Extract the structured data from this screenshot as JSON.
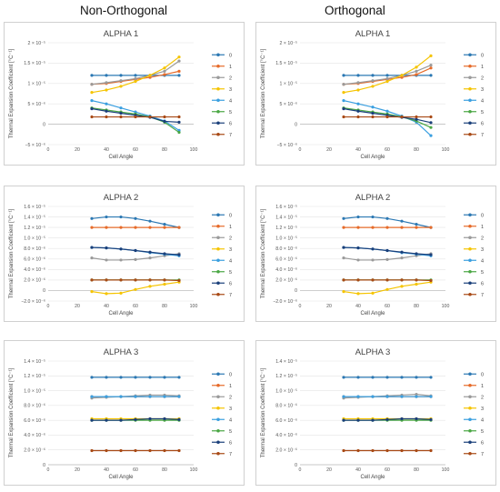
{
  "columns": {
    "left": "Non-Orthogonal",
    "right": "Orthogonal"
  },
  "series_colors": [
    "#2b78b3",
    "#e66b2a",
    "#9a9a9a",
    "#f5c400",
    "#3a9fe0",
    "#4aa744",
    "#1a3f7a",
    "#a84a16"
  ],
  "chart_data": [
    {
      "type": "line",
      "panel": "alpha1-non-orthogonal",
      "title": "ALPHA 1",
      "xlabel": "Cell Angle",
      "ylabel": "Thermal Expansion Coefficient [°C⁻¹]",
      "xlim": [
        0,
        100
      ],
      "ylim": [
        -5e-06,
        2e-05
      ],
      "x_ticks": [
        "0",
        "20",
        "40",
        "60",
        "80",
        "100"
      ],
      "y_ticks": [
        "−5 × 10⁻⁶",
        "0",
        "5 × 10⁻⁶",
        "1 × 10⁻⁵",
        "1.5 × 10⁻⁵",
        "2 × 10⁻⁵"
      ],
      "x": [
        30,
        40,
        50,
        60,
        70,
        80,
        90
      ],
      "series": [
        {
          "name": "0",
          "values": [
            1.2e-05,
            1.2e-05,
            1.2e-05,
            1.2e-05,
            1.2e-05,
            1.2e-05,
            1.2e-05
          ]
        },
        {
          "name": "1",
          "values": [
            9.8e-06,
            1e-05,
            1.05e-05,
            1.1e-05,
            1.15e-05,
            1.22e-05,
            1.3e-05
          ]
        },
        {
          "name": "2",
          "values": [
            9.8e-06,
            1.02e-05,
            1.07e-05,
            1.12e-05,
            1.2e-05,
            1.3e-05,
            1.55e-05
          ]
        },
        {
          "name": "3",
          "values": [
            7.8e-06,
            8.4e-06,
            9.3e-06,
            1.05e-05,
            1.2e-05,
            1.38e-05,
            1.65e-05
          ]
        },
        {
          "name": "4",
          "values": [
            5.8e-06,
            5e-06,
            4e-06,
            3e-06,
            2e-06,
            8e-07,
            -1.5e-06
          ]
        },
        {
          "name": "5",
          "values": [
            4e-06,
            3.5e-06,
            3e-06,
            2.5e-06,
            1.8e-06,
            5e-07,
            -2e-06
          ]
        },
        {
          "name": "6",
          "values": [
            3.8e-06,
            3.2e-06,
            2.7e-06,
            2.2e-06,
            1.7e-06,
            7e-07,
            5e-07
          ]
        },
        {
          "name": "7",
          "values": [
            1.8e-06,
            1.8e-06,
            1.8e-06,
            1.8e-06,
            1.8e-06,
            1.8e-06,
            1.8e-06
          ]
        }
      ]
    },
    {
      "type": "line",
      "panel": "alpha1-orthogonal",
      "title": "ALPHA 1",
      "xlabel": "Cell Angle",
      "ylabel": "Thermal Expansion Coefficient [°C⁻¹]",
      "xlim": [
        0,
        100
      ],
      "ylim": [
        -5e-06,
        2e-05
      ],
      "x_ticks": [
        "0",
        "20",
        "40",
        "60",
        "80",
        "100"
      ],
      "y_ticks": [
        "−5 × 10⁻⁶",
        "0",
        "5 × 10⁻⁶",
        "1 × 10⁻⁵",
        "1.5 × 10⁻⁵",
        "2 × 10⁻⁵"
      ],
      "x": [
        30,
        40,
        50,
        60,
        70,
        80,
        90
      ],
      "series": [
        {
          "name": "0",
          "values": [
            1.2e-05,
            1.2e-05,
            1.2e-05,
            1.2e-05,
            1.2e-05,
            1.2e-05,
            1.2e-05
          ]
        },
        {
          "name": "1",
          "values": [
            9.8e-06,
            1e-05,
            1.05e-05,
            1.1e-05,
            1.15e-05,
            1.22e-05,
            1.38e-05
          ]
        },
        {
          "name": "2",
          "values": [
            9.8e-06,
            1.02e-05,
            1.07e-05,
            1.12e-05,
            1.2e-05,
            1.3e-05,
            1.45e-05
          ]
        },
        {
          "name": "3",
          "values": [
            7.8e-06,
            8.4e-06,
            9.3e-06,
            1.05e-05,
            1.2e-05,
            1.4e-05,
            1.68e-05
          ]
        },
        {
          "name": "4",
          "values": [
            5.8e-06,
            5e-06,
            4.2e-06,
            3.2e-06,
            2e-06,
            5e-07,
            -2.8e-06
          ]
        },
        {
          "name": "5",
          "values": [
            4e-06,
            3.5e-06,
            3e-06,
            2.5e-06,
            1.8e-06,
            8e-07,
            -8e-07
          ]
        },
        {
          "name": "6",
          "values": [
            3.8e-06,
            3.2e-06,
            2.7e-06,
            2.2e-06,
            1.7e-06,
            1.2e-06,
            4e-07
          ]
        },
        {
          "name": "7",
          "values": [
            1.8e-06,
            1.8e-06,
            1.8e-06,
            1.8e-06,
            1.8e-06,
            1.8e-06,
            1.8e-06
          ]
        }
      ]
    },
    {
      "type": "line",
      "panel": "alpha2-non-orthogonal",
      "title": "ALPHA 2",
      "xlabel": "Cell Angle",
      "ylabel": "Thermal Expansion Coefficient [°C⁻¹]",
      "xlim": [
        0,
        100
      ],
      "ylim": [
        -2e-06,
        1.6e-05
      ],
      "x_ticks": [
        "0",
        "20",
        "40",
        "60",
        "80",
        "100"
      ],
      "y_ticks": [
        "−2.0 × 10⁻⁶",
        "0",
        "2.0 × 10⁻⁶",
        "4.0 × 10⁻⁶",
        "6.0 × 10⁻⁶",
        "8.0 × 10⁻⁶",
        "1.0 × 10⁻⁵",
        "1.2 × 10⁻⁵",
        "1.4 × 10⁻⁵",
        "1.6 × 10⁻⁵"
      ],
      "x": [
        30,
        40,
        50,
        60,
        70,
        80,
        90
      ],
      "series": [
        {
          "name": "0",
          "values": [
            1.37e-05,
            1.4e-05,
            1.4e-05,
            1.37e-05,
            1.32e-05,
            1.26e-05,
            1.2e-05
          ]
        },
        {
          "name": "1",
          "values": [
            1.2e-05,
            1.2e-05,
            1.2e-05,
            1.2e-05,
            1.2e-05,
            1.2e-05,
            1.2e-05
          ]
        },
        {
          "name": "2",
          "values": [
            6.2e-06,
            5.8e-06,
            5.8e-06,
            5.9e-06,
            6.2e-06,
            6.6e-06,
            7e-06
          ]
        },
        {
          "name": "3",
          "values": [
            -2e-07,
            -6e-07,
            -5e-07,
            2e-07,
            8e-07,
            1.2e-06,
            1.6e-06
          ]
        },
        {
          "name": "4",
          "values": [
            8.2e-06,
            8.1e-06,
            7.9e-06,
            7.6e-06,
            7.2e-06,
            6.9e-06,
            6.6e-06
          ]
        },
        {
          "name": "5",
          "values": [
            2e-06,
            2e-06,
            2e-06,
            2e-06,
            2e-06,
            2e-06,
            2e-06
          ]
        },
        {
          "name": "6",
          "values": [
            8.2e-06,
            8.1e-06,
            7.9e-06,
            7.6e-06,
            7.3e-06,
            7e-06,
            6.8e-06
          ]
        },
        {
          "name": "7",
          "values": [
            2e-06,
            2e-06,
            2e-06,
            2e-06,
            2e-06,
            2e-06,
            1.9e-06
          ]
        }
      ]
    },
    {
      "type": "line",
      "panel": "alpha2-orthogonal",
      "title": "ALPHA 2",
      "xlabel": "Cell Angle",
      "ylabel": "Thermal Expansion Coefficient [°C⁻¹]",
      "xlim": [
        0,
        100
      ],
      "ylim": [
        -2e-06,
        1.6e-05
      ],
      "x_ticks": [
        "0",
        "20",
        "40",
        "60",
        "80",
        "100"
      ],
      "y_ticks": [
        "−2.0 × 10⁻⁶",
        "0",
        "2.0 × 10⁻⁶",
        "4.0 × 10⁻⁶",
        "6.0 × 10⁻⁶",
        "8.0 × 10⁻⁶",
        "1.0 × 10⁻⁵",
        "1.2 × 10⁻⁵",
        "1.4 × 10⁻⁵",
        "1.6 × 10⁻⁵"
      ],
      "x": [
        30,
        40,
        50,
        60,
        70,
        80,
        90
      ],
      "series": [
        {
          "name": "0",
          "values": [
            1.37e-05,
            1.4e-05,
            1.4e-05,
            1.37e-05,
            1.32e-05,
            1.26e-05,
            1.2e-05
          ]
        },
        {
          "name": "1",
          "values": [
            1.2e-05,
            1.2e-05,
            1.2e-05,
            1.2e-05,
            1.2e-05,
            1.2e-05,
            1.2e-05
          ]
        },
        {
          "name": "2",
          "values": [
            6.2e-06,
            5.8e-06,
            5.8e-06,
            5.9e-06,
            6.2e-06,
            6.6e-06,
            7e-06
          ]
        },
        {
          "name": "3",
          "values": [
            -2e-07,
            -6e-07,
            -5e-07,
            2e-07,
            8e-07,
            1.2e-06,
            1.6e-06
          ]
        },
        {
          "name": "4",
          "values": [
            8.2e-06,
            8.1e-06,
            7.9e-06,
            7.6e-06,
            7.2e-06,
            6.9e-06,
            6.6e-06
          ]
        },
        {
          "name": "5",
          "values": [
            2e-06,
            2e-06,
            2e-06,
            2e-06,
            2e-06,
            2e-06,
            2e-06
          ]
        },
        {
          "name": "6",
          "values": [
            8.2e-06,
            8.1e-06,
            7.9e-06,
            7.6e-06,
            7.3e-06,
            7e-06,
            6.8e-06
          ]
        },
        {
          "name": "7",
          "values": [
            2e-06,
            2e-06,
            2e-06,
            2e-06,
            2e-06,
            2e-06,
            1.9e-06
          ]
        }
      ]
    },
    {
      "type": "line",
      "panel": "alpha3-non-orthogonal",
      "title": "ALPHA 3",
      "xlabel": "Cell Angle",
      "ylabel": "Thermal Expansion Coefficient [°C⁻¹]",
      "xlim": [
        0,
        100
      ],
      "ylim": [
        0,
        1.4e-05
      ],
      "x_ticks": [
        "0",
        "20",
        "40",
        "60",
        "80",
        "100"
      ],
      "y_ticks": [
        "0",
        "2.0 × 10⁻⁶",
        "4.0 × 10⁻⁶",
        "6.0 × 10⁻⁶",
        "8.0 × 10⁻⁶",
        "1.0 × 10⁻⁵",
        "1.2 × 10⁻⁵",
        "1.4 × 10⁻⁵"
      ],
      "x": [
        30,
        40,
        50,
        60,
        70,
        80,
        90
      ],
      "series": [
        {
          "name": "0",
          "values": [
            1.18e-05,
            1.18e-05,
            1.18e-05,
            1.18e-05,
            1.18e-05,
            1.18e-05,
            1.18e-05
          ]
        },
        {
          "name": "1",
          "values": [
            9.2e-06,
            9.2e-06,
            9.2e-06,
            9.2e-06,
            9.2e-06,
            9.2e-06,
            9.2e-06
          ]
        },
        {
          "name": "2",
          "values": [
            9e-06,
            9.1e-06,
            9.2e-06,
            9.3e-06,
            9.4e-06,
            9.4e-06,
            9.3e-06
          ]
        },
        {
          "name": "3",
          "values": [
            6.2e-06,
            6.2e-06,
            6.2e-06,
            6.2e-06,
            6.2e-06,
            6.2e-06,
            6.2e-06
          ]
        },
        {
          "name": "4",
          "values": [
            9.2e-06,
            9.2e-06,
            9.2e-06,
            9.2e-06,
            9.2e-06,
            9.2e-06,
            9.2e-06
          ]
        },
        {
          "name": "5",
          "values": [
            6e-06,
            6e-06,
            6e-06,
            6e-06,
            6e-06,
            6e-06,
            6e-06
          ]
        },
        {
          "name": "6",
          "values": [
            6e-06,
            6e-06,
            6e-06,
            6.1e-06,
            6.2e-06,
            6.2e-06,
            6.1e-06
          ]
        },
        {
          "name": "7",
          "values": [
            1.9e-06,
            1.9e-06,
            1.9e-06,
            1.9e-06,
            1.9e-06,
            1.9e-06,
            1.9e-06
          ]
        }
      ]
    },
    {
      "type": "line",
      "panel": "alpha3-orthogonal",
      "title": "ALPHA 3",
      "xlabel": "Cell Angle",
      "ylabel": "Thermal Expansion Coefficient [°C⁻¹]",
      "xlim": [
        0,
        100
      ],
      "ylim": [
        0,
        1.4e-05
      ],
      "x_ticks": [
        "0",
        "20",
        "40",
        "60",
        "80",
        "100"
      ],
      "y_ticks": [
        "0",
        "2.0 × 10⁻⁶",
        "4.0 × 10⁻⁶",
        "6.0 × 10⁻⁶",
        "8.0 × 10⁻⁶",
        "1.0 × 10⁻⁵",
        "1.2 × 10⁻⁵",
        "1.4 × 10⁻⁵"
      ],
      "x": [
        30,
        40,
        50,
        60,
        70,
        80,
        90
      ],
      "series": [
        {
          "name": "0",
          "values": [
            1.18e-05,
            1.18e-05,
            1.18e-05,
            1.18e-05,
            1.18e-05,
            1.18e-05,
            1.18e-05
          ]
        },
        {
          "name": "1",
          "values": [
            9.2e-06,
            9.2e-06,
            9.2e-06,
            9.2e-06,
            9.2e-06,
            9.2e-06,
            9.2e-06
          ]
        },
        {
          "name": "2",
          "values": [
            9e-06,
            9.1e-06,
            9.2e-06,
            9.3e-06,
            9.4e-06,
            9.5e-06,
            9.3e-06
          ]
        },
        {
          "name": "3",
          "values": [
            6.2e-06,
            6.2e-06,
            6.2e-06,
            6.2e-06,
            6.2e-06,
            6.2e-06,
            6.2e-06
          ]
        },
        {
          "name": "4",
          "values": [
            9.2e-06,
            9.2e-06,
            9.2e-06,
            9.2e-06,
            9.2e-06,
            9.2e-06,
            9.2e-06
          ]
        },
        {
          "name": "5",
          "values": [
            6e-06,
            6e-06,
            6e-06,
            6e-06,
            6e-06,
            6e-06,
            6e-06
          ]
        },
        {
          "name": "6",
          "values": [
            6e-06,
            6e-06,
            6e-06,
            6.1e-06,
            6.2e-06,
            6.2e-06,
            6.1e-06
          ]
        },
        {
          "name": "7",
          "values": [
            1.9e-06,
            1.9e-06,
            1.9e-06,
            1.9e-06,
            1.9e-06,
            1.9e-06,
            1.9e-06
          ]
        }
      ]
    }
  ]
}
